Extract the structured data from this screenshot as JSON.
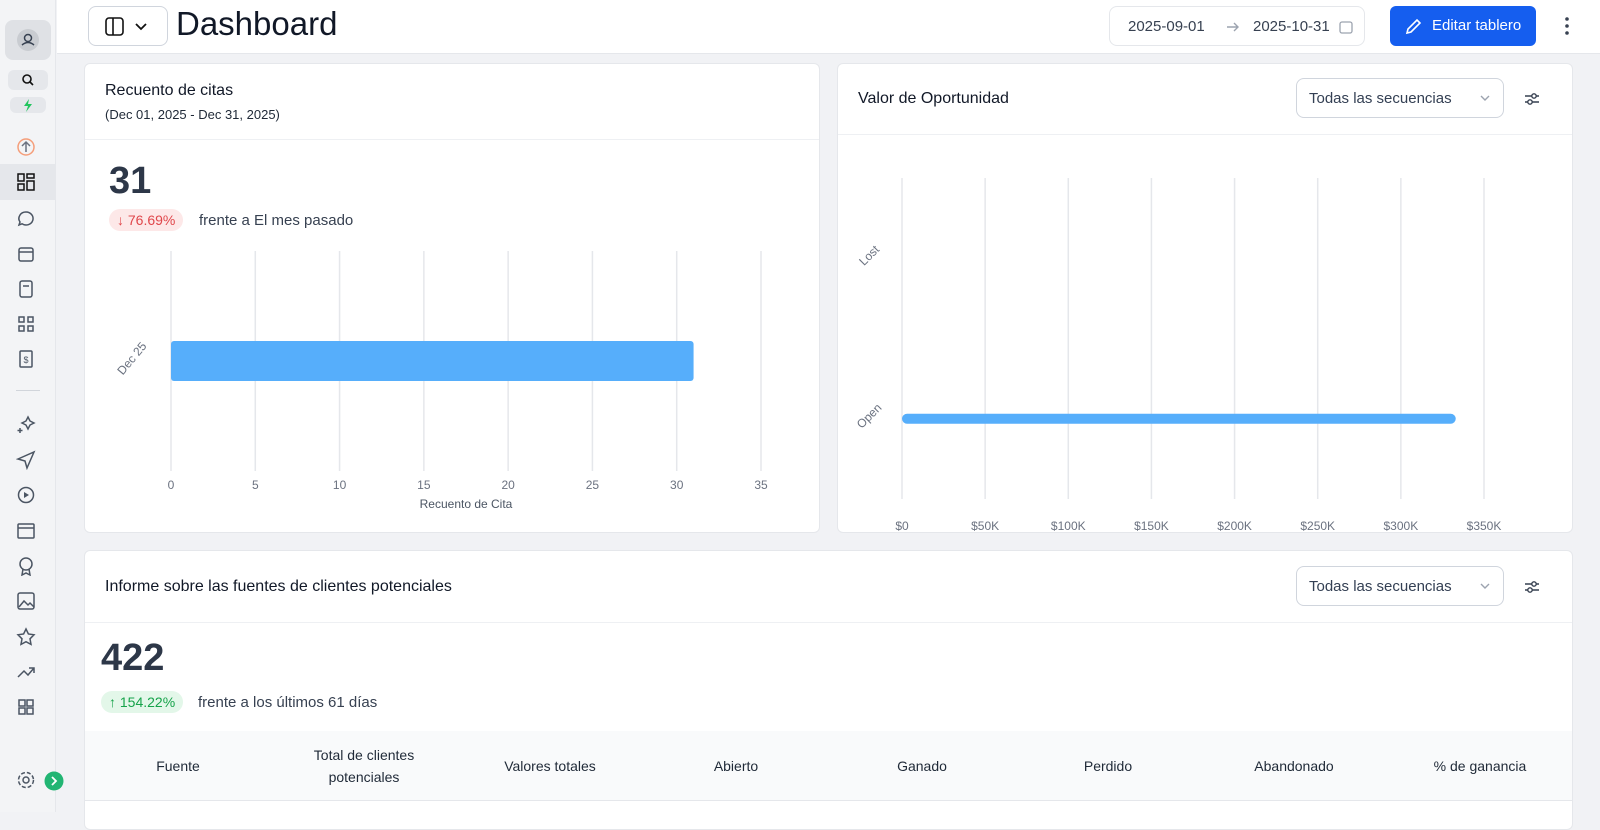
{
  "header": {
    "title": "Dashboard",
    "date_start": "2025-09-01",
    "date_end": "2025-10-31",
    "edit_button": "Editar tablero"
  },
  "appointments": {
    "title": "Recuento de citas",
    "subtitle": "(Dec 01, 2025 - Dec 31, 2025)",
    "total": "31",
    "change": "76.69%",
    "comparison": "frente a El mes pasado"
  },
  "opportunity": {
    "title": "Valor de Oportunidad",
    "filter": "Todas las secuencias"
  },
  "lead_sources": {
    "title": "Informe sobre las fuentes de clientes potenciales",
    "filter": "Todas las secuencias",
    "total": "422",
    "change": "154.22%",
    "comparison": "frente a los últimos 61 días",
    "table": {
      "columns": [
        "Fuente",
        "Total de clientes potenciales",
        "Valores totales",
        "Abierto",
        "Ganado",
        "Perdido",
        "Abandonado",
        "% de ganancia"
      ]
    }
  },
  "chart_data": [
    {
      "type": "bar",
      "orientation": "horizontal",
      "categories": [
        "Dec 25"
      ],
      "values": [
        31
      ],
      "color": "#56aefb",
      "xlim": [
        0,
        35
      ],
      "xticks": [
        0,
        5,
        10,
        15,
        20,
        25,
        30,
        35
      ],
      "x_label": "Recuento de Cita",
      "grid": true
    },
    {
      "type": "bar",
      "orientation": "horizontal",
      "categories": [
        "Lost",
        "Open"
      ],
      "values": [
        0,
        333000
      ],
      "color": "#56aefb",
      "xlim": [
        0,
        350000
      ],
      "xticks": [
        {
          "value": 0,
          "label": "$0"
        },
        {
          "value": 50000,
          "label": "$50K"
        },
        {
          "value": 100000,
          "label": "$100K"
        },
        {
          "value": 150000,
          "label": "$150K"
        },
        {
          "value": 200000,
          "label": "$200K"
        },
        {
          "value": 250000,
          "label": "$250K"
        },
        {
          "value": 300000,
          "label": "$300K"
        },
        {
          "value": 350000,
          "label": "$350K"
        }
      ],
      "grid": true
    }
  ]
}
